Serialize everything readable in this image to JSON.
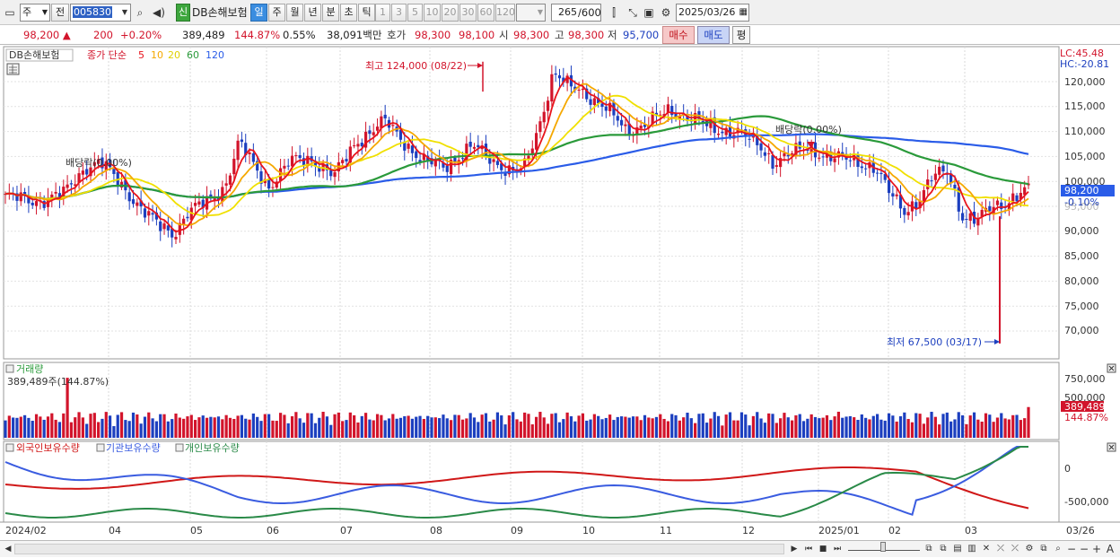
{
  "toolbar": {
    "market_select": "주",
    "prev_label": "전",
    "stock_code": "005830",
    "new_badge": "신",
    "stock_name": "DB손해보험",
    "periods": [
      "일",
      "주",
      "월",
      "년",
      "분",
      "초",
      "틱"
    ],
    "active_period": "일",
    "intervals": [
      "1",
      "3",
      "5",
      "10",
      "20",
      "30",
      "60",
      "120"
    ],
    "count_display": "265",
    "count_total": "/600",
    "date": "2025/03/26"
  },
  "quote": {
    "price": "98,200",
    "change": "200",
    "change_pct": "+0.20%",
    "volume": "389,489",
    "volume_ratio": "144.87%",
    "turnover_pct": "0.55%",
    "trade_value": "38,091백만",
    "ask_label": "호가",
    "ask": "98,300",
    "bid": "98,100",
    "open_label": "시",
    "open": "98,300",
    "high_label": "고",
    "high": "98,300",
    "low_label": "저",
    "low": "95,700",
    "buy_label": "매수",
    "sell_label": "매도",
    "eval_label": "평"
  },
  "main_chart": {
    "stock_label": "DB손해보험",
    "legend_prefix": "종가 단순",
    "ma_periods": [
      "5",
      "10",
      "20",
      "60",
      "120"
    ],
    "ma_colors": [
      "#e8141c",
      "#f5a800",
      "#f0e000",
      "#2a9a3a",
      "#2a5ce8"
    ],
    "lc_label": "LC:45.48",
    "hc_label": "HC:-20.81",
    "high_annotation": "최고 124,000 (08/22)",
    "low_annotation": "최저 67,500 (03/17)",
    "dividend_annotation_1": "배당락(0.00%)",
    "dividend_annotation_2": "배당락(0.00%)",
    "current_price_tag": "98,200",
    "current_change_tag": "-0.10%",
    "y_ticks": [
      "120,000",
      "115,000",
      "110,000",
      "105,000",
      "100,000",
      "95,000",
      "90,000",
      "85,000",
      "80,000",
      "75,000",
      "70,000"
    ]
  },
  "volume_panel": {
    "title": "거래량",
    "value_text": "389,489주(144.87%)",
    "y_ticks": [
      "750,000",
      "500,000"
    ],
    "tag_value": "389,489",
    "tag_pct": "144.87%"
  },
  "holdings_panel": {
    "legend": [
      "외국인보유수량",
      "기관보유수량",
      "개인보유수량"
    ],
    "colors": [
      "#d01818",
      "#3a5ce0",
      "#2a8a48"
    ],
    "y_ticks": [
      "0",
      "-500,000"
    ]
  },
  "x_axis": {
    "labels": [
      "2024/02",
      "04",
      "05",
      "06",
      "07",
      "08",
      "09",
      "10",
      "11",
      "12",
      "2025/01",
      "02",
      "03",
      "03/26"
    ]
  },
  "colors": {
    "up": "#d2142b",
    "down": "#1c3fbf",
    "price_tag_bg": "#2a5ce8"
  }
}
